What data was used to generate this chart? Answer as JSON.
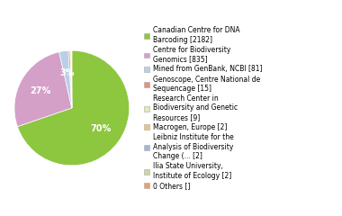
{
  "labels": [
    "Canadian Centre for DNA\nBarcoding [2182]",
    "Centre for Biodiversity\nGenomics [835]",
    "Mined from GenBank, NCBI [81]",
    "Genoscope, Centre National de\nSequencage [15]",
    "Research Center in\nBiodiversity and Genetic\nResources [9]",
    "Macrogen, Europe [2]",
    "Leibniz Institute for the\nAnalysis of Biodiversity\nChange (... [2]",
    "Ilia State University,\nInstitute of Ecology [2]",
    "0 Others []"
  ],
  "values": [
    2182,
    835,
    81,
    15,
    9,
    2,
    2,
    2,
    0.0001
  ],
  "colors": [
    "#8dc63f",
    "#d4a0c8",
    "#b8cfe8",
    "#e8907a",
    "#e8e8b0",
    "#f0c080",
    "#a0b8d8",
    "#c8d8a0",
    "#e8a070"
  ],
  "background_color": "#ffffff",
  "font_size": 7.0,
  "legend_font_size": 5.5
}
